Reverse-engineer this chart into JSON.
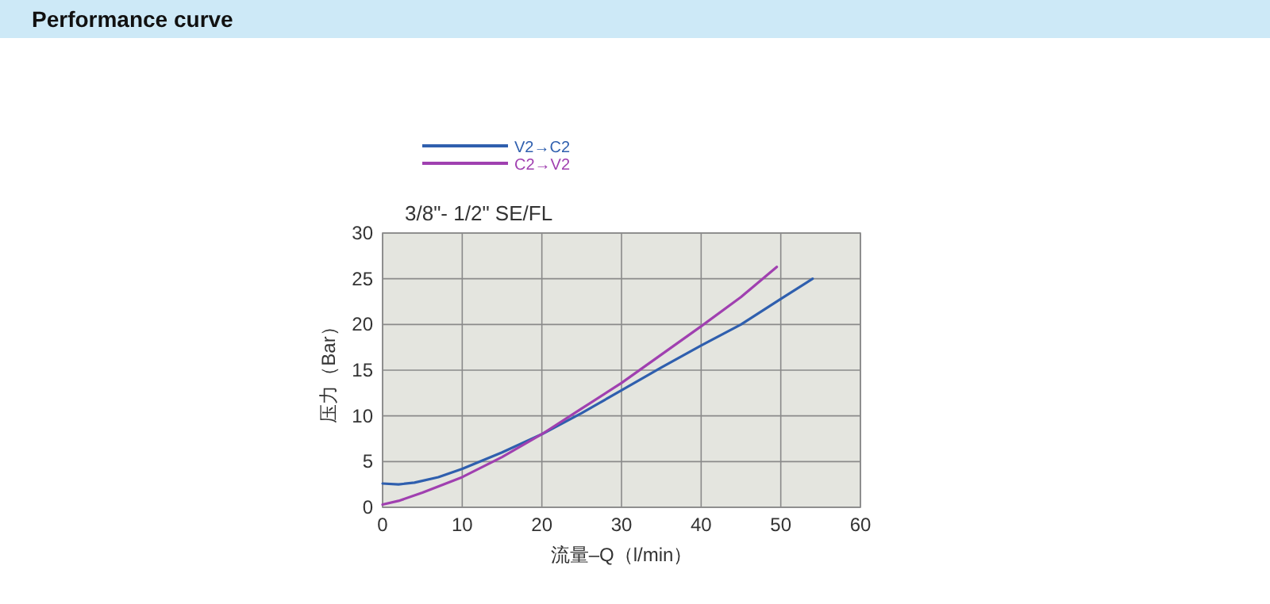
{
  "chart_data": {
    "type": "line",
    "title": "Performance curve",
    "subtitle": "3/8\"- 1/2\" SE/FL",
    "xlabel": "流量–Q（l/min）",
    "ylabel": "压力（Bar）",
    "xlim": [
      0,
      60
    ],
    "xticks": [
      0,
      10,
      20,
      30,
      40,
      50,
      60
    ],
    "ylim": [
      0,
      30
    ],
    "yticks": [
      0,
      5,
      10,
      15,
      20,
      25,
      30
    ],
    "grid": true,
    "legend": "top left",
    "line_style": "solid",
    "series": [
      {
        "name": "V2→C2",
        "color": "#2f5fae",
        "x": [
          0,
          2,
          4,
          7,
          10,
          15,
          20,
          25,
          30,
          35,
          40,
          45,
          50,
          54
        ],
        "values": [
          2.6,
          2.5,
          2.7,
          3.3,
          4.2,
          6,
          8,
          10.3,
          12.8,
          15.3,
          17.7,
          20,
          22.8,
          25
        ]
      },
      {
        "name": "C2→V2",
        "color": "#a040b0",
        "x": [
          0,
          2,
          5,
          10,
          15,
          20,
          25,
          30,
          35,
          40,
          45,
          49.5
        ],
        "values": [
          0.3,
          0.7,
          1.6,
          3.3,
          5.5,
          8,
          10.8,
          13.6,
          16.7,
          19.8,
          23,
          26.3
        ]
      }
    ]
  }
}
